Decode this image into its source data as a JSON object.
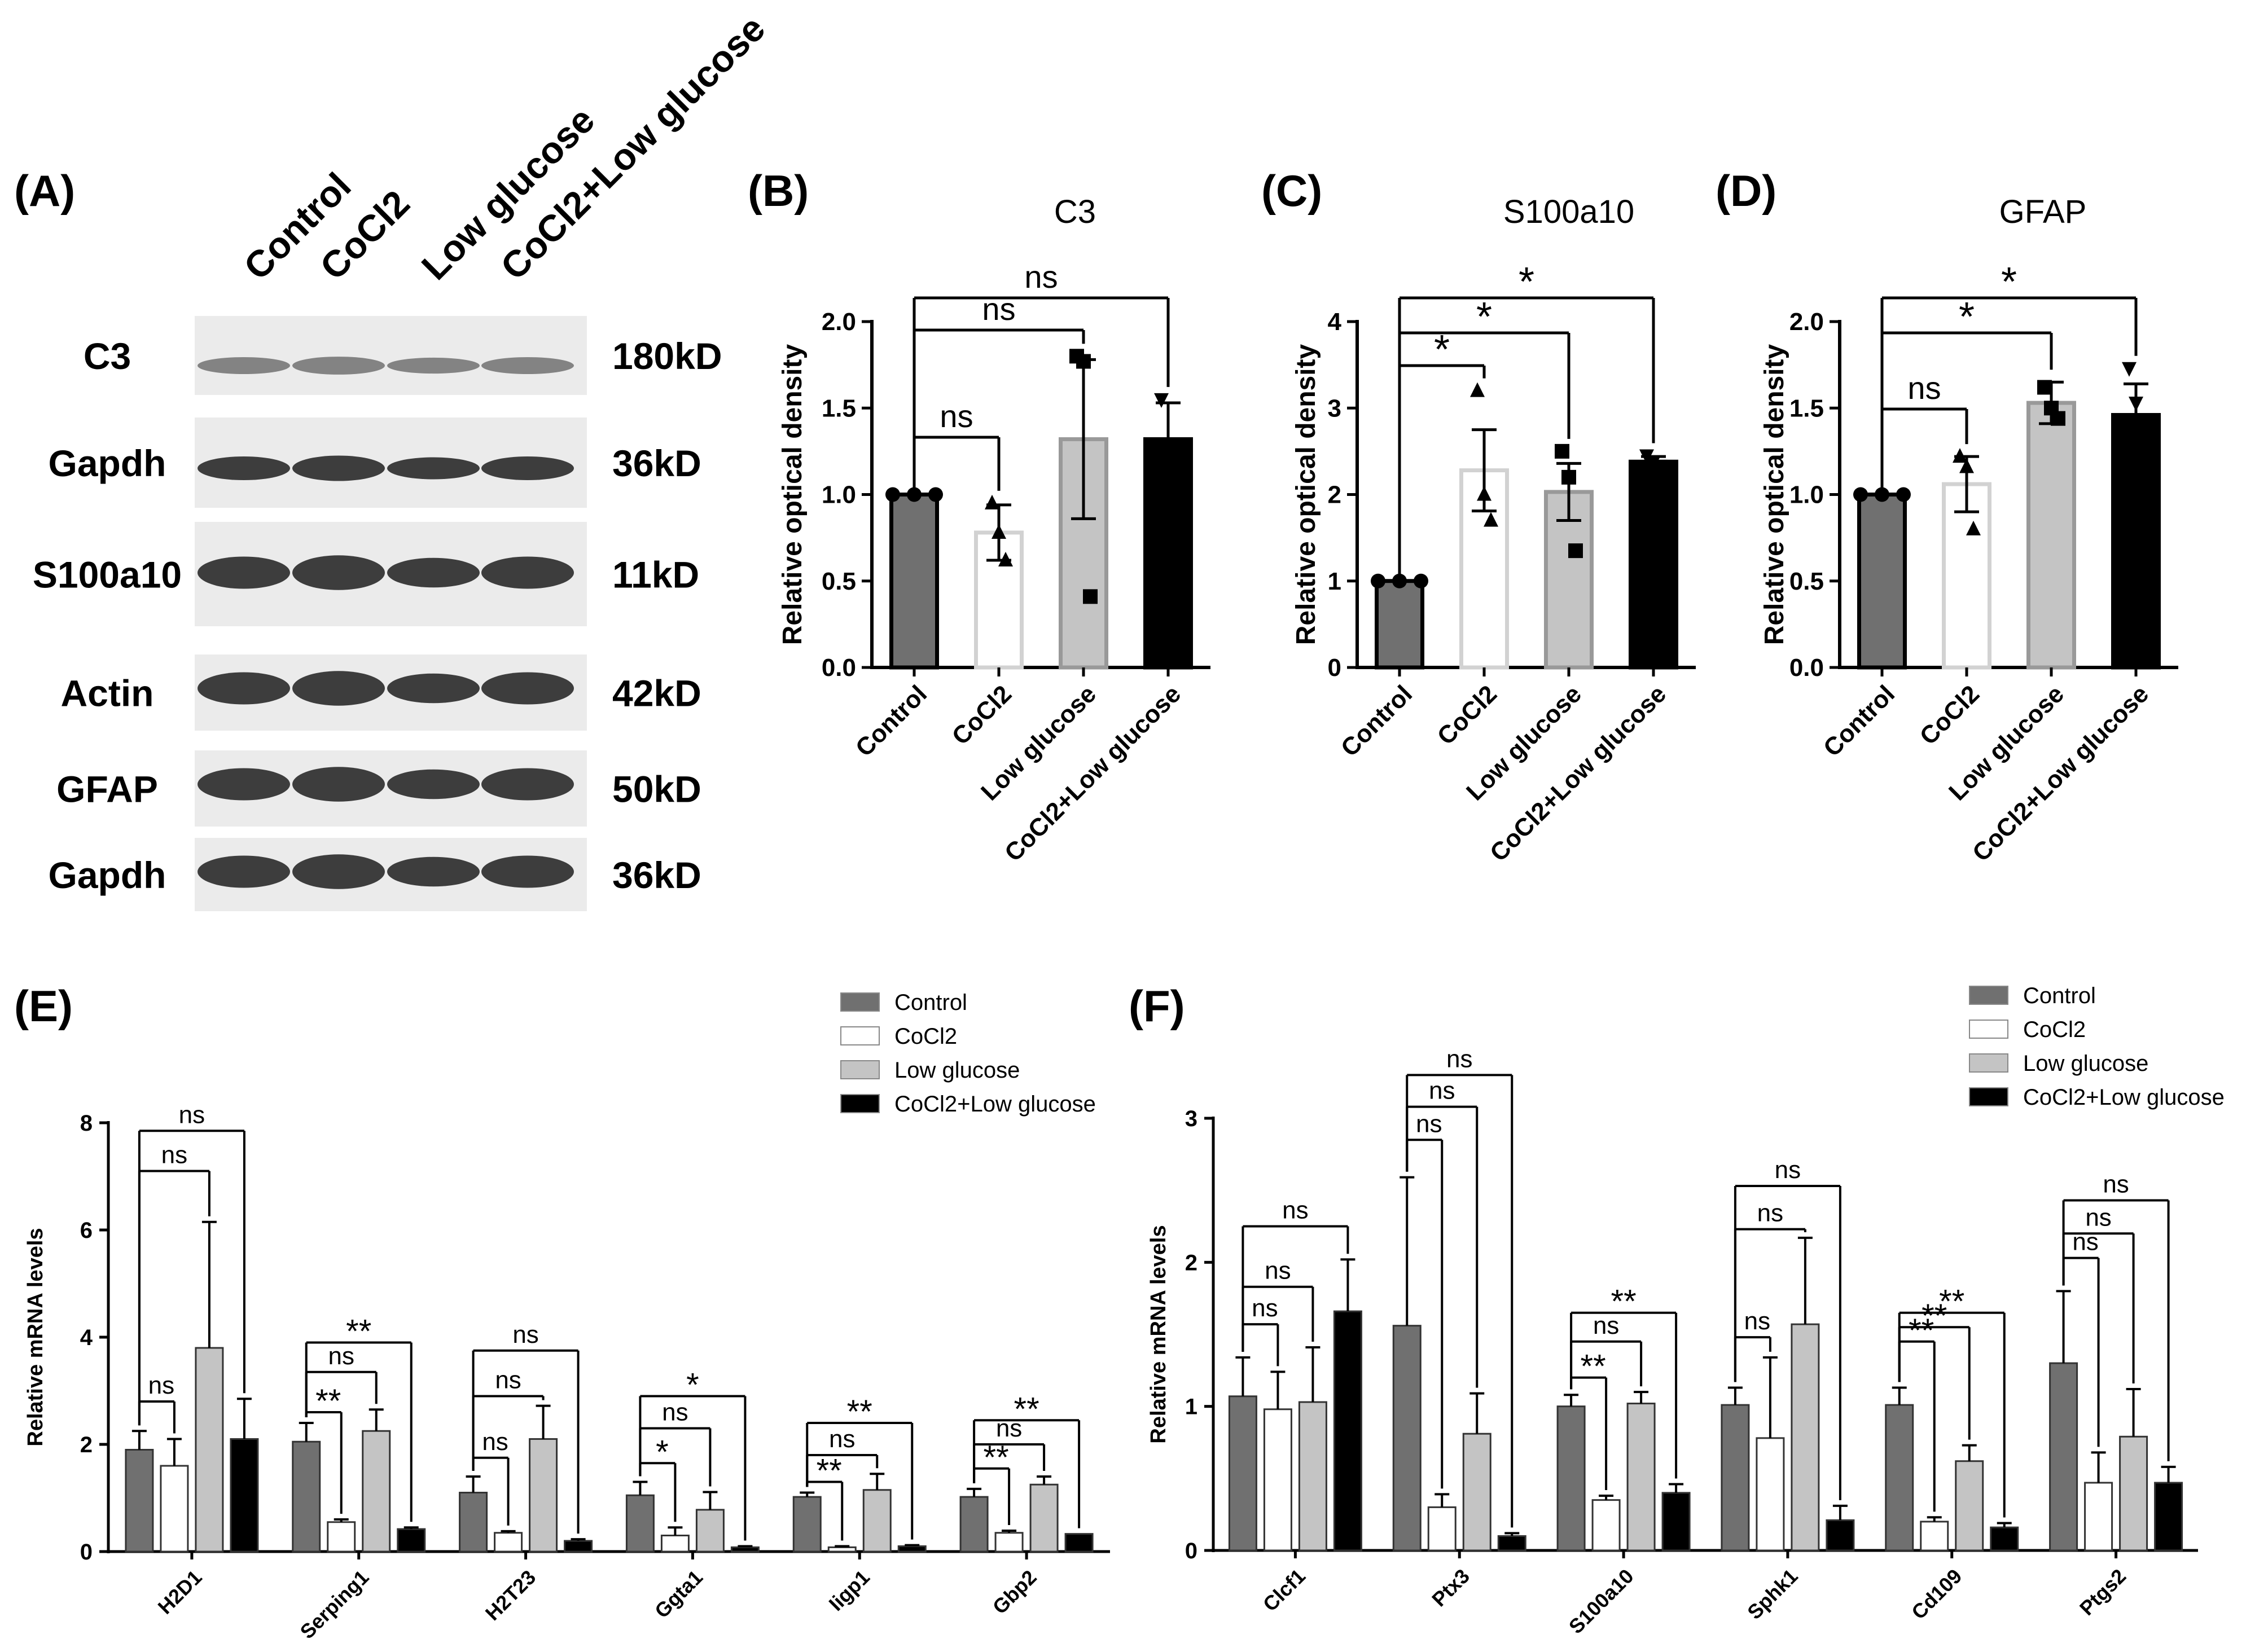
{
  "colors": {
    "control": "#707070",
    "cocl2": "#ffffff",
    "low_glucose": "#c4c4c4",
    "combo": "#000000",
    "text": "#000000"
  },
  "panelA": {
    "label": "(A)",
    "lanes": [
      "Control",
      "CoCl2",
      "Low glucose",
      "CoCl2+Low glucose"
    ],
    "blots": [
      {
        "protein": "C3",
        "size": "180kD"
      },
      {
        "protein": "Gapdh",
        "size": "36kD"
      },
      {
        "protein": "S100a10",
        "size": "11kD"
      },
      {
        "protein": "Actin",
        "size": "42kD"
      },
      {
        "protein": "GFAP",
        "size": "50kD"
      },
      {
        "protein": "Gapdh",
        "size": "36kD"
      }
    ]
  },
  "chart_data": [
    {
      "id": "B",
      "panel_label": "(B)",
      "type": "bar",
      "title": "C3",
      "ylabel": "Relative optical density",
      "categories": [
        "Control",
        "CoCl2",
        "Low glucose",
        "CoCl2+Low glucose"
      ],
      "values": [
        1.0,
        0.78,
        1.32,
        1.32
      ],
      "errors": [
        0,
        0.16,
        0.46,
        0.21
      ],
      "points": [
        [
          1,
          1,
          1
        ],
        [
          0.95,
          0.78,
          0.62
        ],
        [
          1.8,
          1.77,
          0.41
        ],
        [
          1.55,
          1.28,
          0.92
        ]
      ],
      "markers": [
        "circle",
        "triangle",
        "square",
        "triangle-down"
      ],
      "ylim": [
        0,
        2
      ],
      "yticks": [
        0,
        0.5,
        1,
        1.5,
        2
      ],
      "ytick_labels": [
        "0.0",
        "0.5",
        "1.0",
        "1.5",
        "2.0"
      ],
      "brackets": [
        {
          "from": 0,
          "to": 1,
          "label": "ns"
        },
        {
          "from": 0,
          "to": 2,
          "label": "ns"
        },
        {
          "from": 0,
          "to": 3,
          "label": "ns"
        }
      ]
    },
    {
      "id": "C",
      "panel_label": "(C)",
      "type": "bar",
      "title": "S100a10",
      "ylabel": "Relative optical density",
      "categories": [
        "Control",
        "CoCl2",
        "Low glucose",
        "CoCl2+Low glucose"
      ],
      "values": [
        1.0,
        2.28,
        2.03,
        2.38
      ],
      "errors": [
        0,
        0.47,
        0.33,
        0.06
      ],
      "points": [
        [
          1,
          1,
          1
        ],
        [
          3.2,
          2.0,
          1.7
        ],
        [
          2.5,
          2.2,
          1.35
        ],
        [
          2.45,
          2.38,
          2.33
        ]
      ],
      "markers": [
        "circle",
        "triangle",
        "square",
        "triangle-down"
      ],
      "ylim": [
        0,
        4
      ],
      "yticks": [
        0,
        1,
        2,
        3,
        4
      ],
      "ytick_labels": [
        "0",
        "1",
        "2",
        "3",
        "4"
      ],
      "brackets": [
        {
          "from": 0,
          "to": 1,
          "label": "*"
        },
        {
          "from": 0,
          "to": 2,
          "label": "*"
        },
        {
          "from": 0,
          "to": 3,
          "label": "*"
        }
      ]
    },
    {
      "id": "D",
      "panel_label": "(D)",
      "type": "bar",
      "title": "GFAP",
      "ylabel": "Relative optical density",
      "categories": [
        "Control",
        "CoCl2",
        "Low glucose",
        "CoCl2+Low glucose"
      ],
      "values": [
        1.0,
        1.06,
        1.53,
        1.46
      ],
      "errors": [
        0,
        0.16,
        0.12,
        0.18
      ],
      "points": [
        [
          1,
          1,
          1
        ],
        [
          1.22,
          1.16,
          0.8
        ],
        [
          1.62,
          1.5,
          1.44
        ],
        [
          1.73,
          1.53,
          1.12
        ]
      ],
      "markers": [
        "circle",
        "triangle",
        "square",
        "triangle-down"
      ],
      "ylim": [
        0,
        2
      ],
      "yticks": [
        0,
        0.5,
        1,
        1.5,
        2
      ],
      "ytick_labels": [
        "0.0",
        "0.5",
        "1.0",
        "1.5",
        "2.0"
      ],
      "brackets": [
        {
          "from": 0,
          "to": 1,
          "label": "ns"
        },
        {
          "from": 0,
          "to": 2,
          "label": "*"
        },
        {
          "from": 0,
          "to": 3,
          "label": "*"
        }
      ]
    },
    {
      "id": "E",
      "panel_label": "(E)",
      "type": "bar",
      "ylabel": "Relative mRNA levels",
      "categories": [
        "H2D1",
        "Serping1",
        "H2T23",
        "Ggta1",
        "Iigp1",
        "Gbp2"
      ],
      "series": [
        {
          "name": "Control",
          "values": [
            1.9,
            2.05,
            1.1,
            1.05,
            1.02,
            1.02
          ],
          "errors": [
            0.35,
            0.35,
            0.3,
            0.25,
            0.08,
            0.15
          ]
        },
        {
          "name": "CoCl2",
          "values": [
            1.6,
            0.55,
            0.35,
            0.3,
            0.08,
            0.35
          ],
          "errors": [
            0.5,
            0.05,
            0.03,
            0.15,
            0.02,
            0.04
          ]
        },
        {
          "name": "Low glucose",
          "values": [
            3.8,
            2.25,
            2.1,
            0.78,
            1.15,
            1.25
          ],
          "errors": [
            2.35,
            0.4,
            0.62,
            0.33,
            0.3,
            0.15
          ]
        },
        {
          "name": "CoCl2+Low glucose",
          "values": [
            2.1,
            0.42,
            0.2,
            0.08,
            0.1,
            0.33
          ],
          "errors": [
            0.75,
            0.03,
            0.03,
            0.02,
            0.02,
            0
          ]
        }
      ],
      "ylim": [
        0,
        8
      ],
      "yticks": [
        0,
        2,
        4,
        6,
        8
      ],
      "ytick_labels": [
        "0",
        "2",
        "4",
        "6",
        "8"
      ],
      "brackets": [
        [
          {
            "to": 1,
            "label": "ns",
            "y": 2.8
          },
          {
            "to": 2,
            "label": "ns",
            "y": 7.1
          },
          {
            "to": 3,
            "label": "ns",
            "y": 7.85
          }
        ],
        [
          {
            "to": 1,
            "label": "**",
            "y": 2.6
          },
          {
            "to": 2,
            "label": "ns",
            "y": 3.35
          },
          {
            "to": 3,
            "label": "**",
            "y": 3.9
          }
        ],
        [
          {
            "to": 1,
            "label": "ns",
            "y": 1.75
          },
          {
            "to": 2,
            "label": "ns",
            "y": 2.9
          },
          {
            "to": 3,
            "label": "ns",
            "y": 3.75
          }
        ],
        [
          {
            "to": 1,
            "label": "*",
            "y": 1.65
          },
          {
            "to": 2,
            "label": "ns",
            "y": 2.3
          },
          {
            "to": 3,
            "label": "*",
            "y": 2.9
          }
        ],
        [
          {
            "to": 1,
            "label": "**",
            "y": 1.3
          },
          {
            "to": 2,
            "label": "ns",
            "y": 1.8
          },
          {
            "to": 3,
            "label": "**",
            "y": 2.4
          }
        ],
        [
          {
            "to": 1,
            "label": "**",
            "y": 1.55
          },
          {
            "to": 2,
            "label": "ns",
            "y": 2.0
          },
          {
            "to": 3,
            "label": "**",
            "y": 2.45
          }
        ]
      ]
    },
    {
      "id": "F",
      "panel_label": "(F)",
      "type": "bar",
      "ylabel": "Relative mRNA levels",
      "categories": [
        "Clcf1",
        "Ptx3",
        "S100a10",
        "Sphk1",
        "Cd109",
        "Ptgs2"
      ],
      "series": [
        {
          "name": "Control",
          "values": [
            1.07,
            1.56,
            1.0,
            1.01,
            1.01,
            1.3
          ],
          "errors": [
            0.27,
            1.03,
            0.08,
            0.12,
            0.12,
            0.5
          ]
        },
        {
          "name": "CoCl2",
          "values": [
            0.98,
            0.3,
            0.35,
            0.78,
            0.2,
            0.47
          ],
          "errors": [
            0.26,
            0.09,
            0.03,
            0.56,
            0.03,
            0.21
          ]
        },
        {
          "name": "Low glucose",
          "values": [
            1.03,
            0.81,
            1.02,
            1.57,
            0.62,
            0.79
          ],
          "errors": [
            0.38,
            0.28,
            0.08,
            0.6,
            0.11,
            0.33
          ]
        },
        {
          "name": "CoCl2+Low glucose",
          "values": [
            1.66,
            0.1,
            0.4,
            0.21,
            0.16,
            0.47
          ],
          "errors": [
            0.36,
            0.02,
            0.06,
            0.1,
            0.03,
            0.11
          ]
        }
      ],
      "ylim": [
        0,
        3
      ],
      "yticks": [
        0,
        1,
        2,
        3
      ],
      "ytick_labels": [
        "0",
        "1",
        "2",
        "3"
      ],
      "brackets": [
        [
          {
            "to": 1,
            "label": "ns",
            "y": 1.57
          },
          {
            "to": 2,
            "label": "ns",
            "y": 1.83
          },
          {
            "to": 3,
            "label": "ns",
            "y": 2.25
          }
        ],
        [
          {
            "to": 1,
            "label": "ns",
            "y": 2.85
          },
          {
            "to": 2,
            "label": "ns",
            "y": 3.08
          },
          {
            "to": 3,
            "label": "ns",
            "y": 3.3
          }
        ],
        [
          {
            "to": 1,
            "label": "**",
            "y": 1.2
          },
          {
            "to": 2,
            "label": "ns",
            "y": 1.45
          },
          {
            "to": 3,
            "label": "**",
            "y": 1.65
          }
        ],
        [
          {
            "to": 1,
            "label": "ns",
            "y": 1.48
          },
          {
            "to": 2,
            "label": "ns",
            "y": 2.23
          },
          {
            "to": 3,
            "label": "ns",
            "y": 2.53
          }
        ],
        [
          {
            "to": 1,
            "label": "**",
            "y": 1.45
          },
          {
            "to": 2,
            "label": "**",
            "y": 1.55
          },
          {
            "to": 3,
            "label": "**",
            "y": 1.65
          }
        ],
        [
          {
            "to": 1,
            "label": "ns",
            "y": 2.03
          },
          {
            "to": 2,
            "label": "ns",
            "y": 2.2
          },
          {
            "to": 3,
            "label": "ns",
            "y": 2.43
          }
        ]
      ]
    }
  ]
}
